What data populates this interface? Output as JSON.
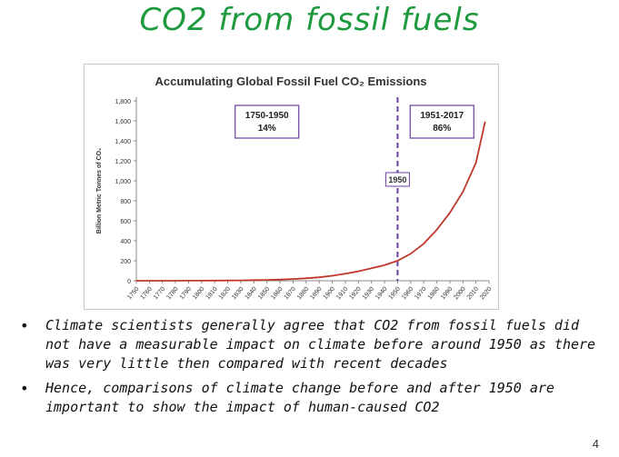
{
  "slide": {
    "title": "CO2 from fossil fuels",
    "page_number": "4",
    "bullets": [
      "Climate scientists generally agree that CO2 from fossil fuels did not have a measurable impact on climate before around 1950 as there was very little then compared with recent decades",
      "Hence, comparisons of climate change before and after 1950 are important to show the impact of human-caused CO2"
    ]
  },
  "chart_data": {
    "type": "line",
    "title": "Accumulating Global Fossil Fuel CO₂ Emissions",
    "ylabel": "Billion Metric Tonnes of CO₂",
    "xlabel": "",
    "ylim": [
      0,
      1800
    ],
    "xlim": [
      1750,
      2020
    ],
    "y_ticks": [
      "0",
      "200",
      "400",
      "600",
      "800",
      "1,000",
      "1,200",
      "1,400",
      "1,600",
      "1,800"
    ],
    "x_ticks": [
      "1750",
      "1760",
      "1770",
      "1780",
      "1790",
      "1800",
      "1810",
      "1820",
      "1830",
      "1840",
      "1850",
      "1860",
      "1870",
      "1880",
      "1890",
      "1900",
      "1910",
      "1920",
      "1930",
      "1940",
      "1950",
      "1960",
      "1970",
      "1980",
      "1990",
      "2000",
      "2010",
      "2020"
    ],
    "grid": false,
    "line_color": "#c0392b",
    "series": [
      {
        "x": [
          1750,
          1760,
          1770,
          1780,
          1790,
          1800,
          1810,
          1820,
          1830,
          1840,
          1850,
          1860,
          1870,
          1880,
          1890,
          1900,
          1910,
          1920,
          1930,
          1940,
          1950,
          1960,
          1970,
          1980,
          1990,
          2000,
          2010,
          2017
        ],
        "y": [
          0,
          0,
          0,
          0,
          1,
          1,
          2,
          3,
          4,
          6,
          8,
          12,
          17,
          25,
          35,
          50,
          70,
          95,
          125,
          155,
          200,
          270,
          370,
          510,
          680,
          890,
          1180,
          1590
        ]
      }
    ],
    "marker_line": {
      "x": 1950,
      "label": "1950",
      "color": "#6b3fa0"
    },
    "annotations": [
      {
        "x": 1850,
        "y": 1600,
        "lines": [
          "1750-1950",
          "14%"
        ]
      },
      {
        "x": 1984,
        "y": 1600,
        "lines": [
          "1951-2017",
          "86%"
        ]
      }
    ]
  }
}
